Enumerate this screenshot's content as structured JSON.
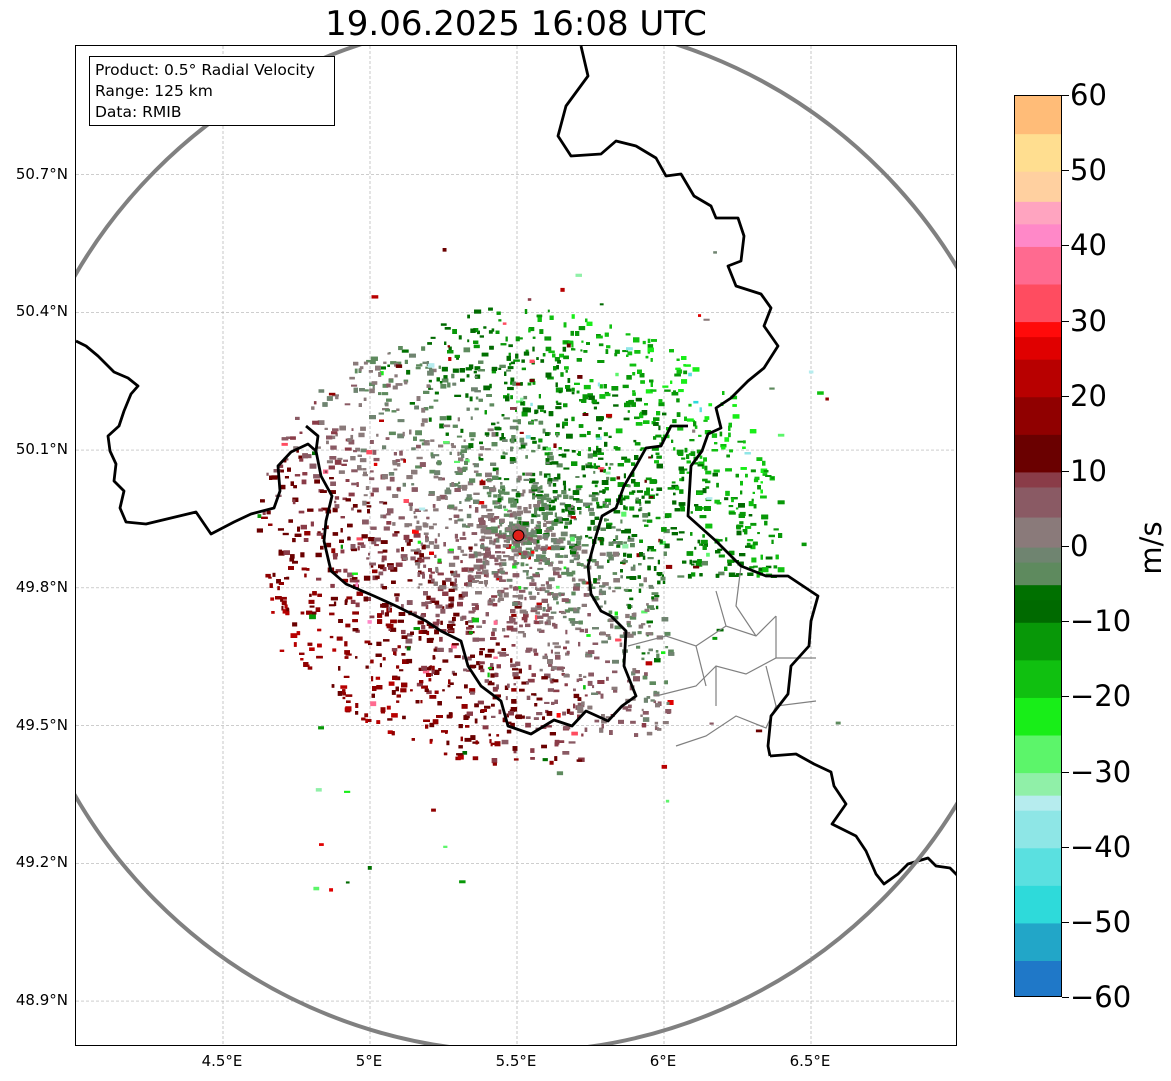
{
  "title": "19.06.2025 16:08 UTC",
  "info_box": {
    "product": "Product: 0.5° Radial Velocity",
    "range": "Range: 125 km",
    "data_source": "Data: RMIB"
  },
  "map": {
    "lon_range": [
      4.0,
      7.0
    ],
    "lat_range": [
      48.8,
      50.98
    ],
    "radar_site": {
      "lon": 5.505,
      "lat": 49.914
    },
    "radar_range_km": 125,
    "lat_ticks": [
      {
        "value": 48.9,
        "label": "48.9°N"
      },
      {
        "value": 49.2,
        "label": "49.2°N"
      },
      {
        "value": 49.5,
        "label": "49.5°N"
      },
      {
        "value": 49.8,
        "label": "49.8°N"
      },
      {
        "value": 50.1,
        "label": "50.1°N"
      },
      {
        "value": 50.4,
        "label": "50.4°N"
      },
      {
        "value": 50.7,
        "label": "50.7°N"
      }
    ],
    "lon_ticks": [
      {
        "value": 4.5,
        "label": "4.5°E"
      },
      {
        "value": 5.0,
        "label": "5°E"
      },
      {
        "value": 5.5,
        "label": "5.5°E"
      },
      {
        "value": 6.0,
        "label": "6°E"
      },
      {
        "value": 6.5,
        "label": "6.5°E"
      }
    ],
    "colors": {
      "range_ring": "#808080",
      "border": "#000000",
      "admin_border": "#808080",
      "grid": "#b0b0b0",
      "radar_marker": "#e0201a"
    }
  },
  "colorbar": {
    "unit": "m/s",
    "min": -60,
    "max": 60,
    "ticks": [
      {
        "value": 60,
        "label": "60"
      },
      {
        "value": 50,
        "label": "50"
      },
      {
        "value": 40,
        "label": "40"
      },
      {
        "value": 30,
        "label": "30"
      },
      {
        "value": 20,
        "label": "20"
      },
      {
        "value": 10,
        "label": "10"
      },
      {
        "value": 0,
        "label": "0"
      },
      {
        "value": -10,
        "label": "−10"
      },
      {
        "value": -20,
        "label": "−20"
      },
      {
        "value": -30,
        "label": "−30"
      },
      {
        "value": -40,
        "label": "−40"
      },
      {
        "value": -50,
        "label": "−50"
      },
      {
        "value": -60,
        "label": "−60"
      }
    ],
    "color_stops": [
      {
        "value": -60,
        "color": "#1f78c8"
      },
      {
        "value": -55,
        "color": "#22a6c8"
      },
      {
        "value": -50,
        "color": "#2edada"
      },
      {
        "value": -45,
        "color": "#5ae0e0"
      },
      {
        "value": -40,
        "color": "#8ee6e6"
      },
      {
        "value": -35,
        "color": "#b6ecee"
      },
      {
        "value": -33,
        "color": "#90f0a8"
      },
      {
        "value": -30,
        "color": "#5cf56a"
      },
      {
        "value": -25,
        "color": "#18ee18"
      },
      {
        "value": -20,
        "color": "#10c010"
      },
      {
        "value": -15,
        "color": "#089808"
      },
      {
        "value": -10,
        "color": "#006a00"
      },
      {
        "value": -7,
        "color": "#007000"
      },
      {
        "value": -5,
        "color": "#5e8a5e"
      },
      {
        "value": -2,
        "color": "#6f8470"
      },
      {
        "value": 0,
        "color": "#8a7a7a"
      },
      {
        "value": 4,
        "color": "#8a5a64"
      },
      {
        "value": 8,
        "color": "#8a3c48"
      },
      {
        "value": 10,
        "color": "#6a0000"
      },
      {
        "value": 15,
        "color": "#900000"
      },
      {
        "value": 20,
        "color": "#b80000"
      },
      {
        "value": 25,
        "color": "#e00000"
      },
      {
        "value": 28,
        "color": "#ff0a0a"
      },
      {
        "value": 30,
        "color": "#ff4c60"
      },
      {
        "value": 35,
        "color": "#ff6a90"
      },
      {
        "value": 40,
        "color": "#ff88c8"
      },
      {
        "value": 43,
        "color": "#ffa4c0"
      },
      {
        "value": 46,
        "color": "#ffd0a0"
      },
      {
        "value": 50,
        "color": "#ffde90"
      },
      {
        "value": 55,
        "color": "#ffbc78"
      },
      {
        "value": 60,
        "color": "#ff9a58"
      }
    ]
  }
}
